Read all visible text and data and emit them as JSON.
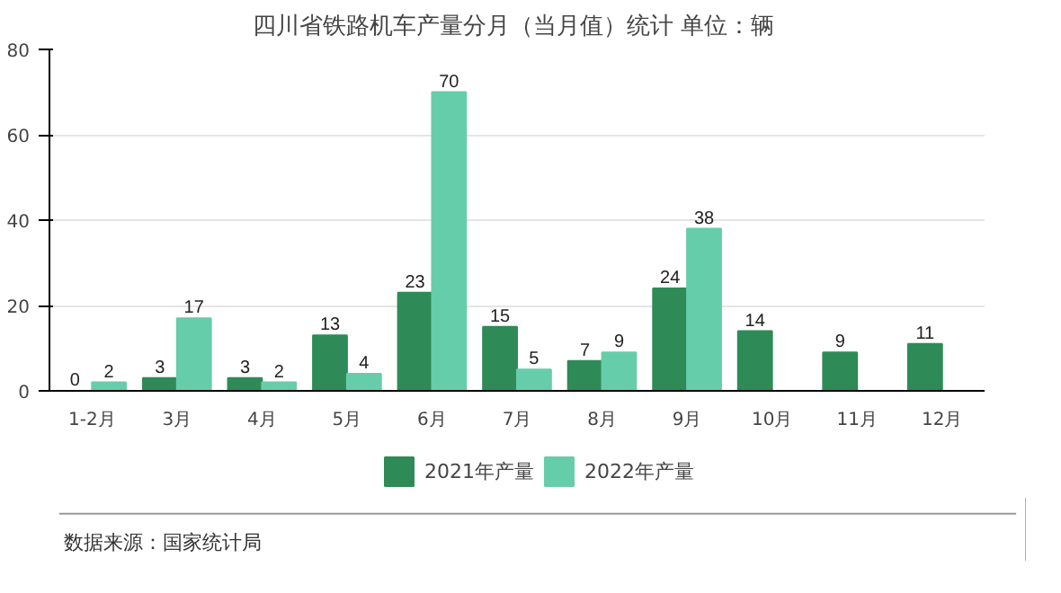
{
  "chart_data": {
    "type": "bar",
    "title": "四川省铁路机车产量分月（当月值）统计  单位：辆",
    "categories": [
      "1-2月",
      "3月",
      "4月",
      "5月",
      "6月",
      "7月",
      "8月",
      "9月",
      "10月",
      "11月",
      "12月"
    ],
    "series": [
      {
        "name": "2021年产量",
        "color": "#2e8b57",
        "values": [
          0,
          3,
          3,
          13,
          23,
          15,
          7,
          24,
          14,
          9,
          11
        ]
      },
      {
        "name": "2022年产量",
        "color": "#66cdaa",
        "values": [
          2,
          17,
          2,
          4,
          70,
          5,
          9,
          38,
          null,
          null,
          null
        ]
      }
    ],
    "ylim": [
      0,
      80
    ],
    "yticks": [
      0,
      20,
      40,
      60,
      80
    ],
    "grid": "y",
    "legend": "bottom",
    "data_labels": true,
    "annotations": [
      "数据来源：国家统计局"
    ]
  }
}
